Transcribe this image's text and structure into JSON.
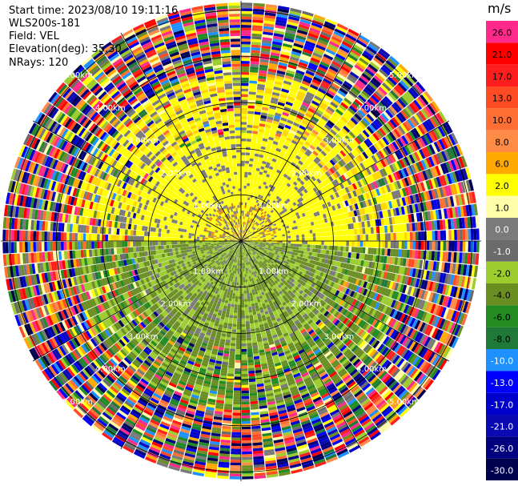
{
  "meta": {
    "start_time": "Start time: 2023/08/10 19:11:16",
    "instrument": "WLS200s-181",
    "field": "Field: VEL",
    "elevation": "Elevation(deg): 35.30",
    "nrays": "NRays: 120"
  },
  "range_rings": {
    "values_km": [
      1.0,
      2.0,
      3.0,
      4.0,
      5.0
    ],
    "labels": [
      "1.00km",
      "2.00km",
      "3.00km",
      "4.00km",
      "5.00km"
    ]
  },
  "colorbar": {
    "unit": "m/s",
    "ticks": [
      "26.0",
      "21.0",
      "17.0",
      "13.0",
      "10.0",
      "8.0",
      "6.0",
      "2.0",
      "1.0",
      "0.0",
      "-1.0",
      "-2.0",
      "-4.0",
      "-6.0",
      "-8.0",
      "-10.0",
      "-13.0",
      "-17.0",
      "-21.0",
      "-26.0",
      "-30.0"
    ],
    "colors": [
      "#ff2a8c",
      "#ff0000",
      "#ff1e1e",
      "#ff4b23",
      "#ff6e32",
      "#ff8c46",
      "#ffaa00",
      "#ffff00",
      "#ffffaa",
      "#7a7a7a",
      "#6b6b6b",
      "#9ccc2e",
      "#6b8e23",
      "#228b22",
      "#1f7a3a",
      "#1e90ff",
      "#0000ff",
      "#0000cd",
      "#0a0ab4",
      "#000080",
      "#000050"
    ]
  },
  "icons": {
    "radar_display": "radar-ppi-icon"
  }
}
